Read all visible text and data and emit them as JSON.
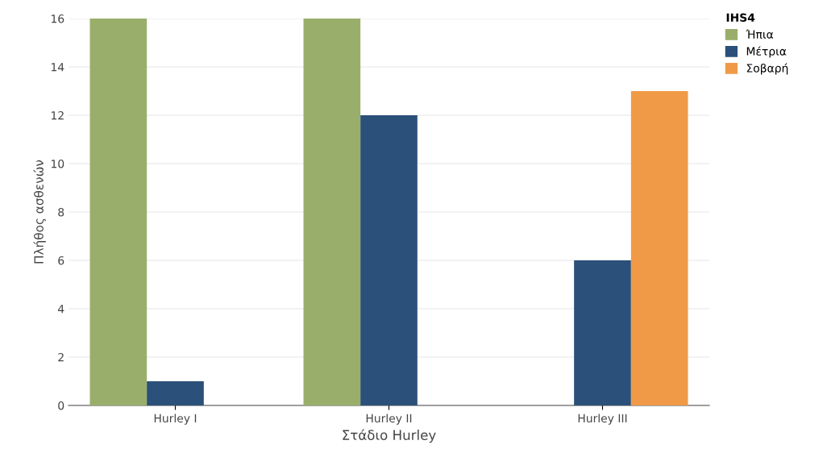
{
  "chart_data": {
    "type": "bar",
    "xlabel": "Στάδιο Hurley",
    "ylabel": "Πλήθος ασθενών",
    "legend_title": "IHS4",
    "legend": "top right",
    "grid": "y",
    "categories": [
      "Hurley I",
      "Hurley II",
      "Hurley III"
    ],
    "series": [
      {
        "name": "Ήπια",
        "color": "#9aae6b",
        "values": [
          16,
          16,
          null
        ]
      },
      {
        "name": "Μέτρια",
        "color": "#2b5079",
        "values": [
          1,
          12,
          6
        ]
      },
      {
        "name": "Σοβαρή",
        "color": "#f09a48",
        "values": [
          null,
          null,
          13
        ]
      }
    ],
    "ylim": [
      0,
      16
    ],
    "yticks": [
      0,
      2,
      4,
      6,
      8,
      10,
      12,
      14,
      16
    ]
  }
}
